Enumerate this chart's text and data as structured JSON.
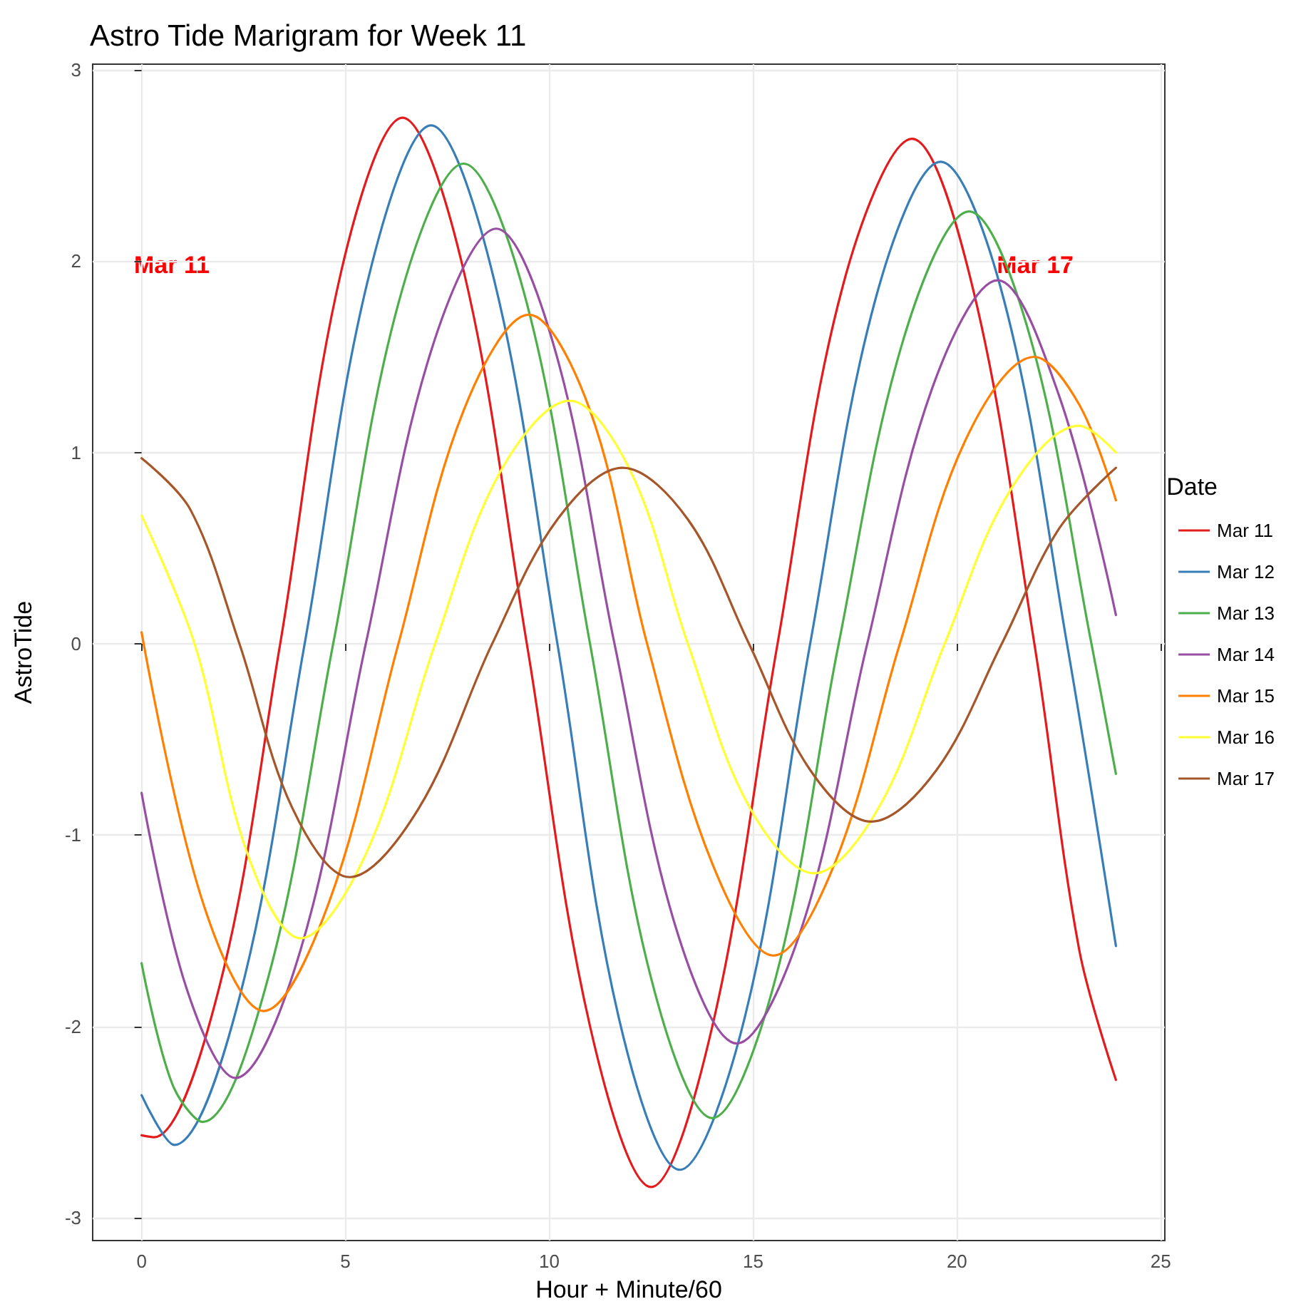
{
  "chart_data": {
    "type": "line",
    "title": "Astro Tide Marigram for Week 11",
    "xlabel": "Hour + Minute/60",
    "ylabel": "AstroTide",
    "legend_title": "Date",
    "legend": "right",
    "grid": true,
    "marker": "none",
    "line_style": "solid",
    "xlim": [
      -1.2,
      25.1
    ],
    "xticks": [
      0,
      5,
      10,
      15,
      20,
      25
    ],
    "ylim": [
      -3.12,
      3.03
    ],
    "yticks": [
      -3,
      -2,
      -1,
      0,
      1,
      2,
      3
    ],
    "annotations": [
      "Mar 11",
      "Mar 17"
    ],
    "series": [
      {
        "name": "Mar 11",
        "color": "#e41a1c",
        "x": [
          0,
          0.3,
          1.9,
          3.4,
          4.9,
          6.4,
          7.9,
          9.45,
          11,
          12.5,
          14,
          15.6,
          17.2,
          18.9,
          20.4,
          21.9,
          23,
          23.9
        ],
        "values": [
          -2.57,
          -2.58,
          -1.8,
          0,
          1.95,
          2.75,
          1.95,
          0,
          -2.0,
          -2.84,
          -2.0,
          0,
          1.87,
          2.64,
          1.85,
          0,
          -1.6,
          -2.28
        ]
      },
      {
        "name": "Mar 12",
        "color": "#377eb8",
        "x": [
          0,
          0.8,
          2.4,
          4.0,
          5.55,
          7.1,
          8.65,
          10.2,
          11.7,
          13.2,
          14.8,
          16.4,
          18.0,
          19.6,
          21.15,
          22.7,
          23.9
        ],
        "values": [
          -2.36,
          -2.62,
          -1.85,
          0,
          1.9,
          2.71,
          1.9,
          0,
          -1.95,
          -2.75,
          -1.95,
          0,
          1.8,
          2.52,
          1.8,
          0,
          -1.58
        ]
      },
      {
        "name": "Mar 13",
        "color": "#4daf4a",
        "x": [
          0,
          0.75,
          1.5,
          3.1,
          4.7,
          6.3,
          7.9,
          9.45,
          11.0,
          12.5,
          14.0,
          15.55,
          17.1,
          18.7,
          20.3,
          21.8,
          23.3,
          23.9
        ],
        "values": [
          -1.67,
          -2.3,
          -2.5,
          -1.75,
          0,
          1.78,
          2.51,
          1.78,
          0,
          -1.75,
          -2.48,
          -1.75,
          0,
          1.6,
          2.26,
          1.6,
          0,
          -0.68
        ]
      },
      {
        "name": "Mar 14",
        "color": "#984ea3",
        "x": [
          0,
          1.1,
          2.3,
          3.9,
          5.5,
          7.1,
          8.7,
          10.15,
          11.6,
          13.1,
          14.6,
          16.2,
          17.8,
          19.4,
          21.0,
          22.5,
          23.9
        ],
        "values": [
          -0.78,
          -1.8,
          -2.27,
          -1.6,
          0,
          1.53,
          2.17,
          1.53,
          0,
          -1.48,
          -2.09,
          -1.48,
          0,
          1.34,
          1.9,
          1.3,
          0.15
        ]
      },
      {
        "name": "Mar 15",
        "color": "#ff7f00",
        "x": [
          0,
          1.5,
          3.0,
          4.6,
          6.3,
          7.9,
          9.5,
          11.0,
          12.4,
          14.0,
          15.5,
          17.0,
          18.6,
          20.2,
          21.9,
          23.0,
          23.9
        ],
        "values": [
          0.06,
          -1.35,
          -1.92,
          -1.35,
          0,
          1.22,
          1.72,
          1.22,
          0,
          -1.15,
          -1.63,
          -1.15,
          0,
          1.06,
          1.5,
          1.25,
          0.75
        ]
      },
      {
        "name": "Mar 16",
        "color": "#ffff33",
        "x": [
          0,
          1.3,
          2.6,
          3.9,
          5.5,
          7.2,
          8.8,
          10.5,
          12.0,
          13.4,
          14.9,
          16.5,
          18.1,
          19.7,
          21.3,
          23.0,
          23.9
        ],
        "values": [
          0.67,
          0,
          -1.1,
          -1.54,
          -1.1,
          0,
          0.9,
          1.27,
          0.9,
          0,
          -0.85,
          -1.2,
          -0.85,
          0,
          0.8,
          1.14,
          1.0
        ]
      },
      {
        "name": "Mar 17",
        "color": "#a65628",
        "x": [
          0,
          1.2,
          2.4,
          3.7,
          5.1,
          6.8,
          8.6,
          10.2,
          11.8,
          13.4,
          14.9,
          16.4,
          17.9,
          19.5,
          21.1,
          22.5,
          23.9
        ],
        "values": [
          0.97,
          0.7,
          0,
          -0.86,
          -1.22,
          -0.86,
          0,
          0.65,
          0.92,
          0.65,
          0,
          -0.66,
          -0.93,
          -0.66,
          0,
          0.6,
          0.92
        ]
      }
    ]
  }
}
